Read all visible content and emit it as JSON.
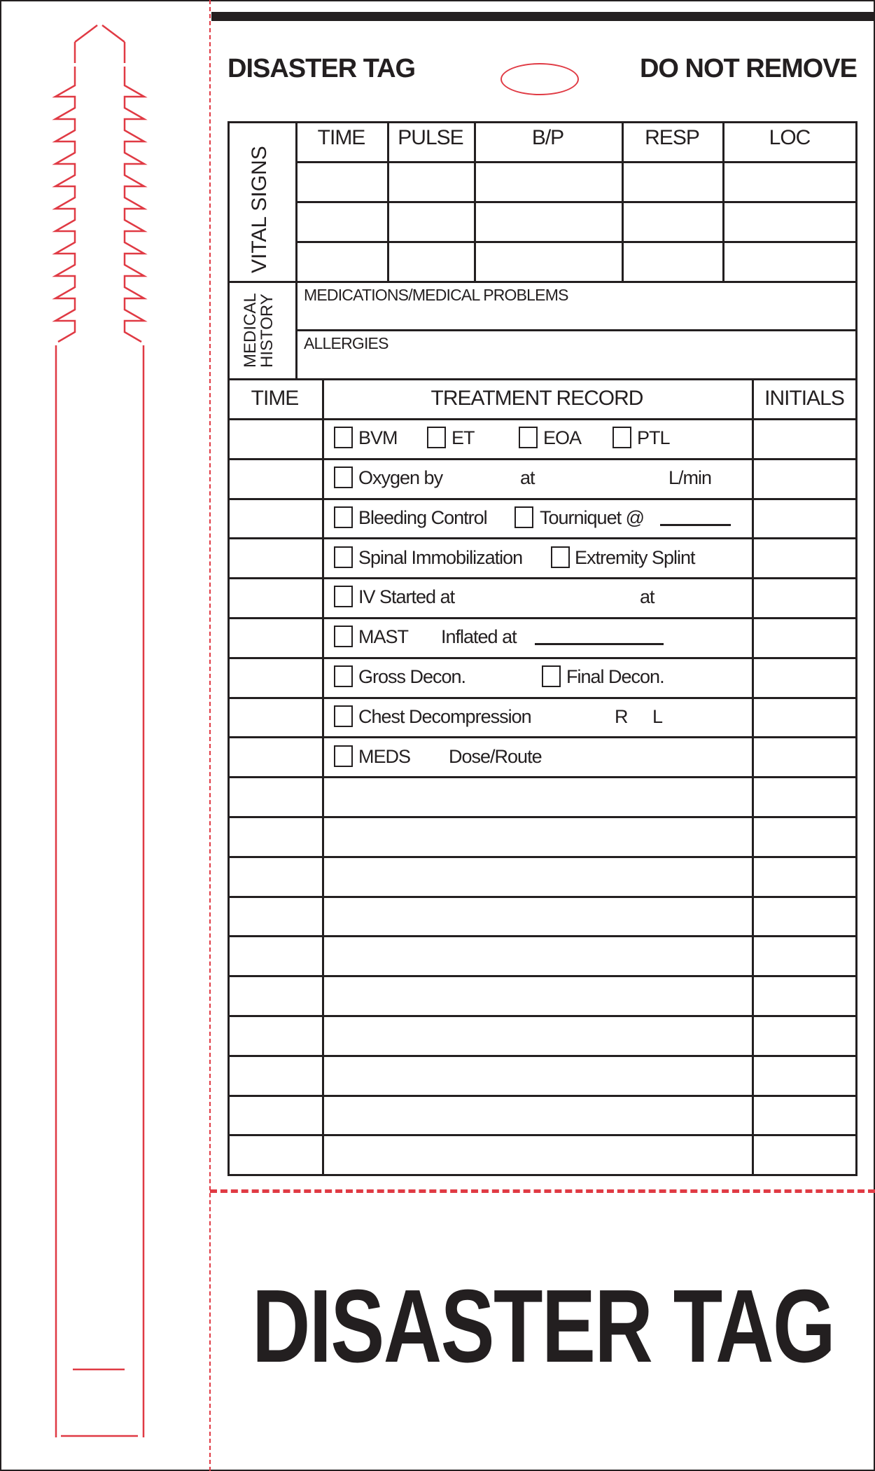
{
  "header": {
    "title": "DISASTER TAG",
    "notice": "DO NOT REMOVE"
  },
  "colors": {
    "ink": "#231f20",
    "perforation": "#e03a44"
  },
  "vital_signs": {
    "section_label": "VITAL SIGNS",
    "columns": [
      "TIME",
      "PULSE",
      "B/P",
      "RESP",
      "LOC"
    ]
  },
  "medical_history": {
    "section_label_1": "MEDICAL",
    "section_label_2": "HISTORY",
    "medications_label": "MEDICATIONS/MEDICAL PROBLEMS",
    "allergies_label": "ALLERGIES"
  },
  "treatment": {
    "columns": [
      "TIME",
      "TREATMENT RECORD",
      "INITIALS"
    ],
    "rows": [
      {
        "items": [
          "BVM",
          "ET",
          "EOA",
          "PTL"
        ]
      },
      {
        "items": [
          "Oxygen by",
          "at",
          "L/min"
        ]
      },
      {
        "items": [
          "Bleeding Control",
          "Tourniquet @"
        ]
      },
      {
        "items": [
          "Spinal Immobilization",
          "Extremity Splint"
        ]
      },
      {
        "items": [
          "IV Started at",
          "at"
        ]
      },
      {
        "items": [
          "MAST",
          "Inflated at"
        ]
      },
      {
        "items": [
          "Gross Decon.",
          "Final Decon."
        ]
      },
      {
        "items": [
          "Chest Decompression",
          "R",
          "L"
        ]
      },
      {
        "items": [
          "MEDS",
          "Dose/Route"
        ]
      }
    ]
  },
  "footer": {
    "title": "DISASTER TAG"
  }
}
